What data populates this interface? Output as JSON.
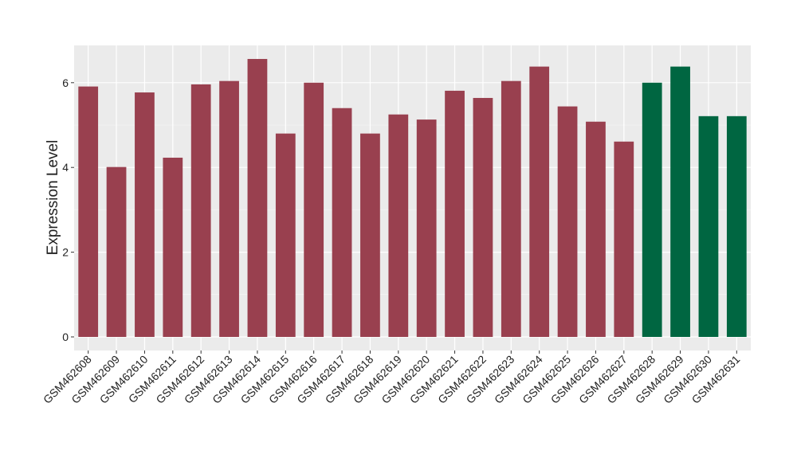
{
  "chart_data": {
    "type": "bar",
    "y_label": "Expression Level",
    "categories": [
      "GSM462608",
      "GSM462609",
      "GSM462610",
      "GSM462611",
      "GSM462612",
      "GSM462613",
      "GSM462614",
      "GSM462615",
      "GSM462616",
      "GSM462617",
      "GSM462618",
      "GSM462619",
      "GSM462620",
      "GSM462621",
      "GSM462622",
      "GSM462623",
      "GSM462624",
      "GSM462625",
      "GSM462626",
      "GSM462627",
      "GSM462628",
      "GSM462629",
      "GSM462630",
      "GSM462631"
    ],
    "values": [
      5.91,
      4.01,
      5.77,
      4.23,
      5.96,
      6.04,
      6.56,
      4.8,
      6.0,
      5.4,
      4.8,
      5.25,
      5.13,
      5.81,
      5.64,
      6.04,
      6.38,
      5.44,
      5.08,
      4.61,
      6.0,
      6.38,
      5.21,
      5.21
    ],
    "colors": [
      "#99404f",
      "#99404f",
      "#99404f",
      "#99404f",
      "#99404f",
      "#99404f",
      "#99404f",
      "#99404f",
      "#99404f",
      "#99404f",
      "#99404f",
      "#99404f",
      "#99404f",
      "#99404f",
      "#99404f",
      "#99404f",
      "#99404f",
      "#99404f",
      "#99404f",
      "#99404f",
      "#006641",
      "#006641",
      "#006641",
      "#006641"
    ],
    "ylim": [
      -0.32,
      6.88
    ],
    "yticks": [
      0,
      2,
      4,
      6
    ],
    "grid": true
  }
}
